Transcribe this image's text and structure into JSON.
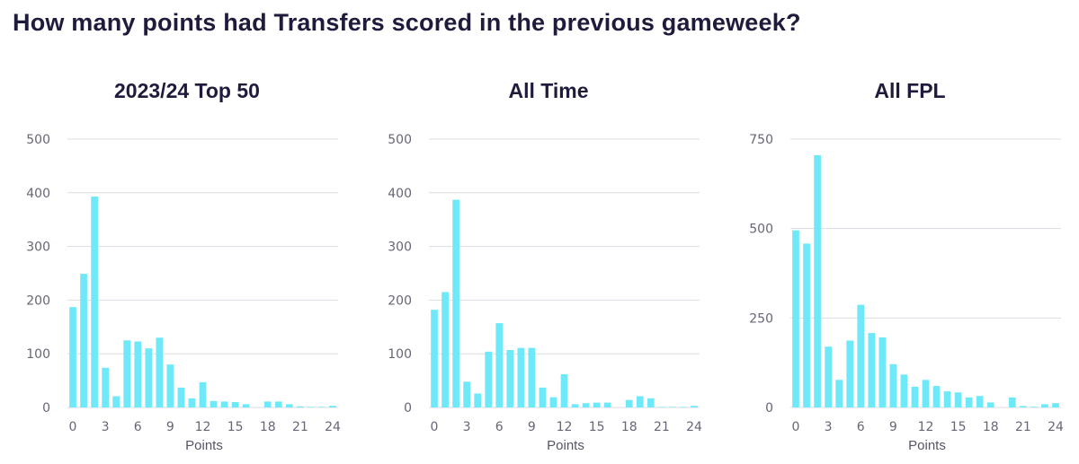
{
  "main_title": "How many points had Transfers scored in the previous gameweek?",
  "style": {
    "bar_color": "#6fe9f7",
    "grid_color": "#dcdde2",
    "title_color": "#1f1b3d",
    "tick_color": "#666677"
  },
  "chart_data": [
    {
      "type": "bar",
      "title": "2023/24 Top 50",
      "xlabel": "Points",
      "ylabel": "",
      "ylim": [
        0,
        500
      ],
      "yticks": [
        0,
        100,
        200,
        300,
        400,
        500
      ],
      "xticks": [
        0,
        3,
        6,
        9,
        12,
        15,
        18,
        21,
        24
      ],
      "x": [
        0,
        1,
        2,
        3,
        4,
        5,
        6,
        7,
        8,
        9,
        10,
        11,
        12,
        13,
        14,
        15,
        16,
        17,
        18,
        19,
        20,
        21,
        22,
        23,
        24
      ],
      "values": [
        187,
        249,
        393,
        74,
        21,
        125,
        123,
        110,
        130,
        80,
        37,
        17,
        47,
        12,
        11,
        10,
        6,
        0,
        11,
        11,
        6,
        2,
        1,
        1,
        3
      ],
      "grid": true
    },
    {
      "type": "bar",
      "title": "All Time",
      "xlabel": "Points",
      "ylabel": "",
      "ylim": [
        0,
        500
      ],
      "yticks": [
        0,
        100,
        200,
        300,
        400,
        500
      ],
      "xticks": [
        0,
        3,
        6,
        9,
        12,
        15,
        18,
        21,
        24
      ],
      "x": [
        0,
        1,
        2,
        3,
        4,
        5,
        6,
        7,
        8,
        9,
        10,
        11,
        12,
        13,
        14,
        15,
        16,
        17,
        18,
        19,
        20,
        21,
        22,
        23,
        24
      ],
      "values": [
        182,
        215,
        387,
        48,
        26,
        104,
        157,
        107,
        111,
        111,
        37,
        19,
        62,
        6,
        8,
        9,
        9,
        0,
        14,
        21,
        17,
        1,
        1,
        1,
        3
      ],
      "grid": true
    },
    {
      "type": "bar",
      "title": "All FPL",
      "xlabel": "Points",
      "ylabel": "",
      "ylim": [
        0,
        750
      ],
      "yticks": [
        0,
        250,
        500,
        750
      ],
      "xticks": [
        0,
        3,
        6,
        9,
        12,
        15,
        18,
        21,
        24
      ],
      "x": [
        0,
        1,
        2,
        3,
        4,
        5,
        6,
        7,
        8,
        9,
        10,
        11,
        12,
        13,
        14,
        15,
        16,
        17,
        18,
        19,
        20,
        21,
        22,
        23,
        24
      ],
      "values": [
        495,
        458,
        705,
        170,
        77,
        187,
        287,
        208,
        196,
        121,
        92,
        58,
        77,
        60,
        45,
        42,
        28,
        32,
        14,
        0,
        28,
        4,
        2,
        9,
        12
      ],
      "grid": true
    }
  ]
}
